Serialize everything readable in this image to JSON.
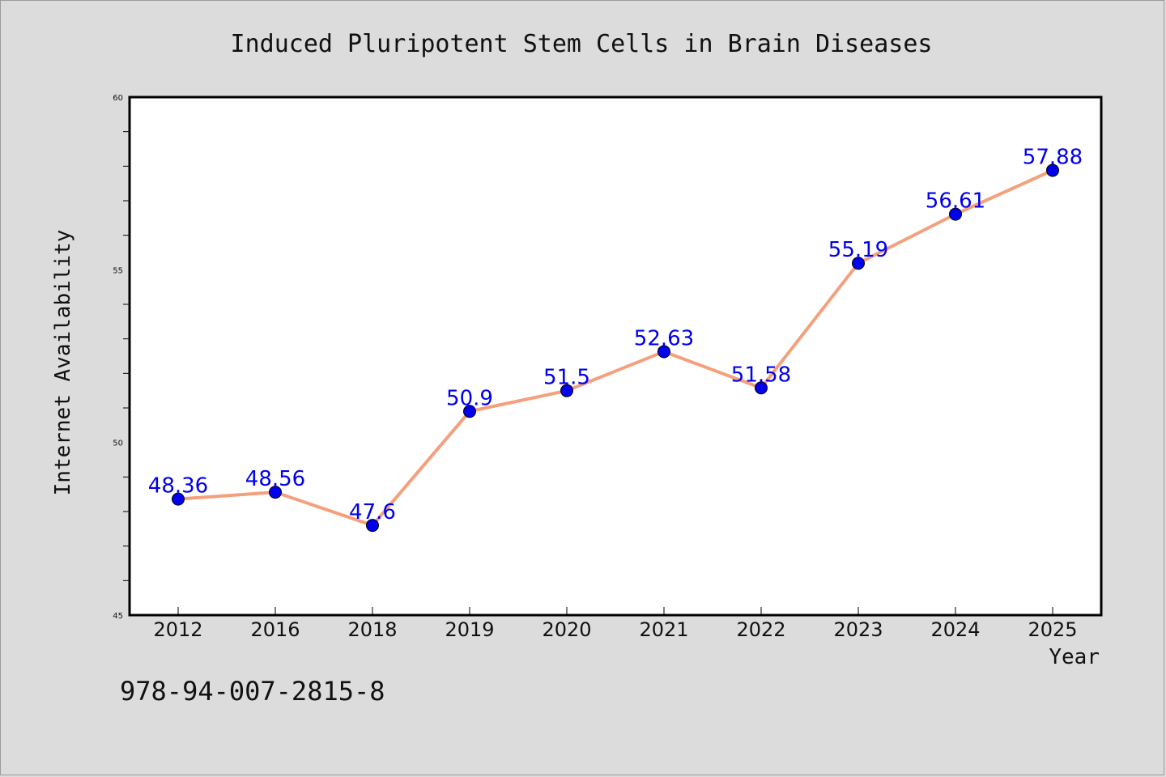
{
  "chart_data": {
    "type": "line",
    "title": "Induced Pluripotent Stem Cells in Brain Diseases",
    "xlabel": "Year",
    "ylabel": "Internet Availability",
    "categories": [
      "2012",
      "2016",
      "2018",
      "2019",
      "2020",
      "2021",
      "2022",
      "2023",
      "2024",
      "2025"
    ],
    "series": [
      {
        "values": [
          48.36,
          48.56,
          47.6,
          50.9,
          51.5,
          52.63,
          51.58,
          55.19,
          56.61,
          57.88
        ],
        "labels": [
          "48.36",
          "48.56",
          "47.6",
          "50.9",
          "51.5",
          "52.63",
          "51.58",
          "55.19",
          "56.61",
          "57.88"
        ]
      }
    ],
    "ylim": [
      45,
      60
    ],
    "yticks": [
      "45",
      "50",
      "55",
      "60"
    ],
    "grid": false,
    "legend": "none"
  },
  "annotation": {
    "isbn": "978-94-007-2815-8"
  },
  "colors": {
    "line": "#f4a07c",
    "marker": "#0000ee",
    "data_label": "#0000ee",
    "background": "#dcdcdc",
    "plot_background": "#ffffff"
  }
}
